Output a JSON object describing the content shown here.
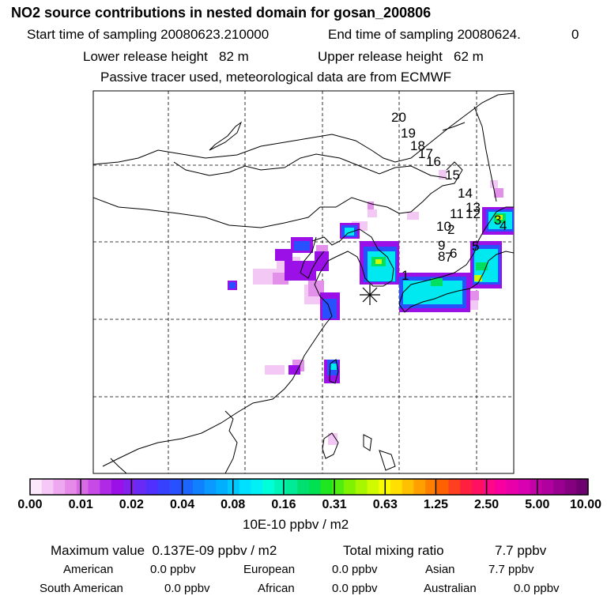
{
  "header": {
    "title": "NO2 source contributions in nested domain for gosan_200806",
    "start_label": "Start time of sampling 20080623.210000",
    "end_label": "End time of sampling 20080624.",
    "end_value": "0",
    "lower_label": "Lower release height   82 m",
    "upper_label": "Upper release height   62 m",
    "note": "Passive tracer used, meteorological data are from ECMWF"
  },
  "map": {
    "release_marker": "asterisk-icon",
    "trajectory_labels": [
      "1",
      "4",
      "5",
      "6",
      "7",
      "8",
      "9",
      "10",
      "11",
      "12",
      "13",
      "14",
      "15",
      "16",
      "17",
      "18",
      "19",
      "20",
      "2",
      "3"
    ]
  },
  "colorbar": {
    "colors": [
      "#fbe8fb",
      "#f5c8f5",
      "#eea8f0",
      "#e68ae9",
      "#d86ae6",
      "#c84ae6",
      "#b02ae6",
      "#9a10e6",
      "#8420ee",
      "#6a2af5",
      "#5030ff",
      "#3840ff",
      "#2850ff",
      "#1a66ff",
      "#1080ff",
      "#0a9aff",
      "#00b0ff",
      "#00c8ff",
      "#00e0ff",
      "#00f0f5",
      "#00ffd8",
      "#00f5b8",
      "#00ea98",
      "#00e070",
      "#00e050",
      "#20e620",
      "#50ee10",
      "#80f200",
      "#a8f600",
      "#d0fa00",
      "#f8fa00",
      "#ffe000",
      "#ffc000",
      "#ffa000",
      "#ff8000",
      "#ff6000",
      "#ff4020",
      "#ff2040",
      "#ff1060",
      "#ff0888",
      "#f800a0",
      "#e800a8",
      "#d800b0",
      "#c400a8",
      "#b000a0",
      "#9a0090",
      "#840080",
      "#6e0070"
    ],
    "ticks": [
      "0.00",
      "0.01",
      "0.02",
      "0.04",
      "0.08",
      "0.16",
      "0.31",
      "0.63",
      "1.25",
      "2.50",
      "5.00",
      "10.00"
    ],
    "unit": "10E-10 ppbv / m2"
  },
  "stats": {
    "max_label": "Maximum value  0.137E-09 ppbv / m2",
    "total_label": "Total mixing ratio",
    "total_value": "7.7 ppbv",
    "american_label": "American",
    "american_value": "0.0 ppbv",
    "european_label": "European",
    "european_value": "0.0 ppbv",
    "asian_label": "Asian",
    "asian_value": "7.7 ppbv",
    "south_american_label": "South American",
    "south_american_value": "0.0 ppbv",
    "african_label": "African",
    "african_value": "0.0 ppbv",
    "australian_label": "Australian",
    "australian_value": "0.0 ppbv"
  }
}
